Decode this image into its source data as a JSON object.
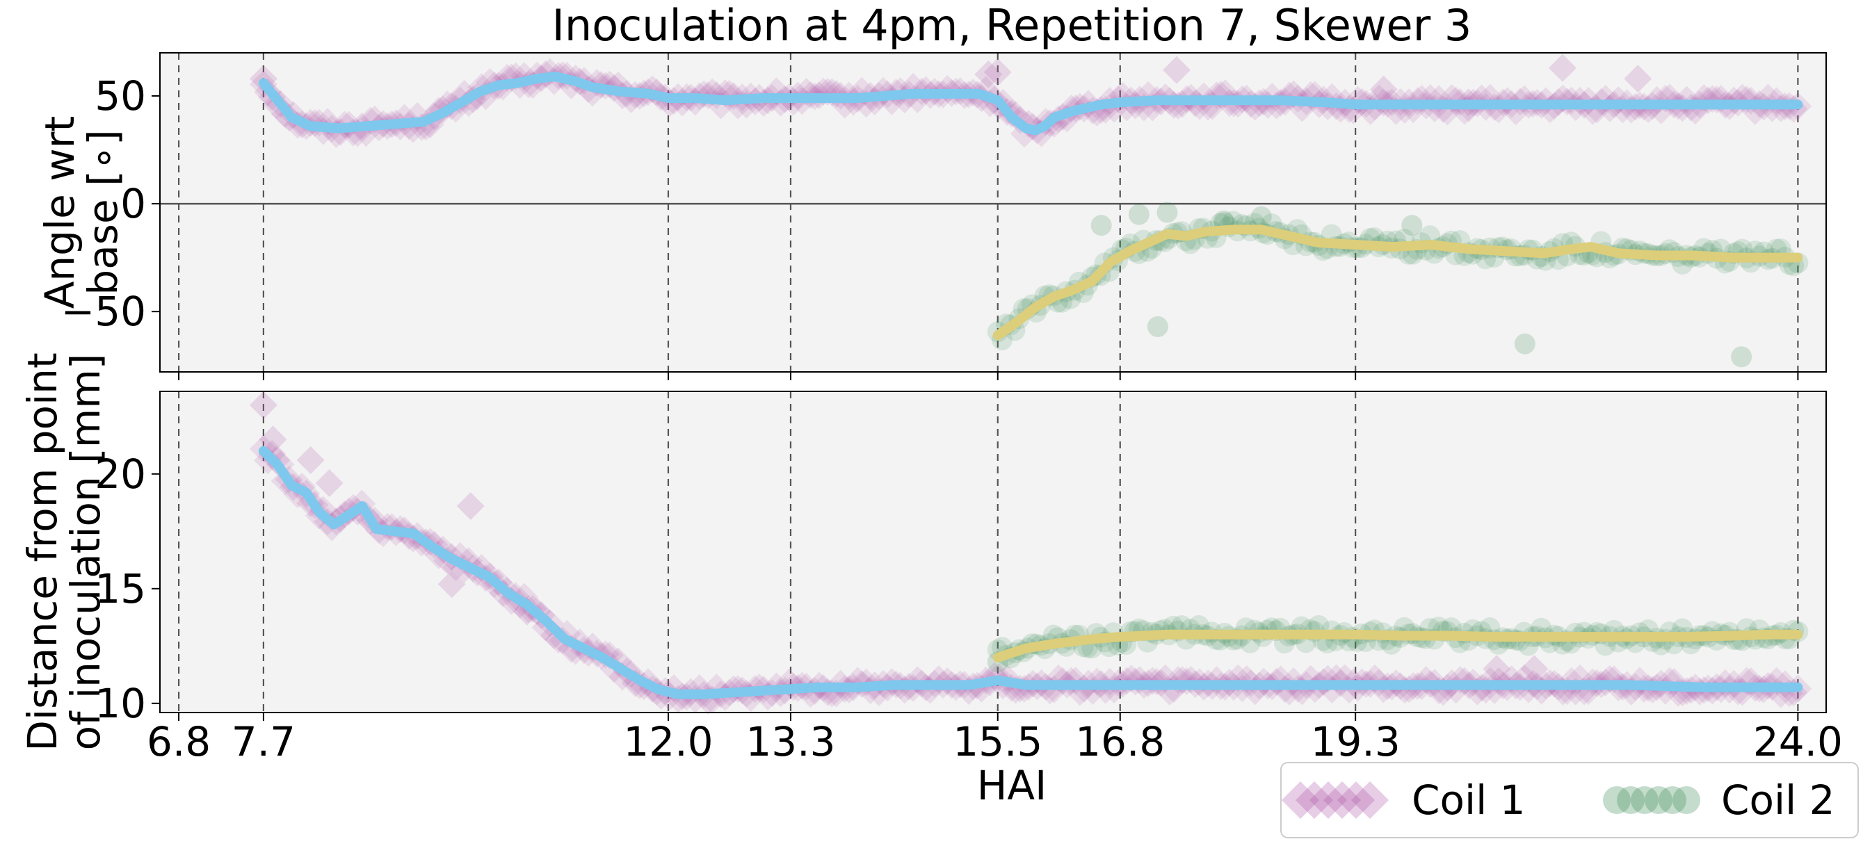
{
  "chart_data": {
    "type": "scatter",
    "title": "Inoculation at 4pm, Repetition 7, Skewer 3",
    "xlabel": "HAI",
    "xlim": [
      6.6,
      24.3
    ],
    "xticks": [
      6.8,
      7.7,
      12.0,
      13.3,
      15.5,
      16.8,
      19.3,
      24.0
    ],
    "xtick_labels": [
      "6.8",
      "7.7",
      "12.0",
      "13.3",
      "15.5",
      "16.8",
      "19.3",
      "24.0"
    ],
    "vlines": [
      6.8,
      7.7,
      12.0,
      13.3,
      15.5,
      16.8,
      19.3,
      24.0
    ],
    "legend": {
      "placement": "bottom-right",
      "entries": [
        {
          "label": "Coil 1",
          "marker": "diamond",
          "color": "#b05aaa"
        },
        {
          "label": "Coil 2",
          "marker": "circle",
          "color": "#3c8c55"
        }
      ]
    },
    "colors": {
      "panel_bg": "#f3f3f3",
      "coil1_marker": "#b05aaa",
      "coil1_line": "#7ec8ee",
      "coil2_marker": "#3c8c55",
      "coil2_line": "#dcce7a"
    },
    "panels": [
      {
        "ylabel_lines": [
          "Angle wrt",
          "base [∘]"
        ],
        "ylim": [
          -78,
          70
        ],
        "yticks": [
          50,
          0,
          -50
        ],
        "ytick_labels": [
          "50",
          "0",
          "−50"
        ],
        "hline": 0,
        "series": [
          {
            "name": "Coil 1",
            "smooth": [
              [
                7.7,
                56
              ],
              [
                7.85,
                48
              ],
              [
                8.0,
                40
              ],
              [
                8.2,
                36
              ],
              [
                8.5,
                35
              ],
              [
                8.8,
                36
              ],
              [
                9.1,
                37
              ],
              [
                9.4,
                38
              ],
              [
                9.6,
                42
              ],
              [
                9.8,
                47
              ],
              [
                10.0,
                52
              ],
              [
                10.2,
                55
              ],
              [
                10.4,
                56
              ],
              [
                10.6,
                58
              ],
              [
                10.8,
                59
              ],
              [
                11.0,
                57
              ],
              [
                11.2,
                54
              ],
              [
                11.5,
                52
              ],
              [
                11.8,
                51
              ],
              [
                12.0,
                49
              ],
              [
                12.3,
                49
              ],
              [
                12.6,
                48
              ],
              [
                13.0,
                49
              ],
              [
                13.3,
                49
              ],
              [
                13.6,
                49
              ],
              [
                14.0,
                49
              ],
              [
                14.3,
                50
              ],
              [
                14.6,
                51
              ],
              [
                15.0,
                51
              ],
              [
                15.3,
                51
              ],
              [
                15.5,
                48
              ],
              [
                15.65,
                40
              ],
              [
                15.8,
                35
              ],
              [
                15.9,
                34
              ],
              [
                16.0,
                36
              ],
              [
                16.1,
                40
              ],
              [
                16.3,
                43
              ],
              [
                16.6,
                46
              ],
              [
                16.8,
                47
              ],
              [
                17.2,
                48
              ],
              [
                17.6,
                48
              ],
              [
                18.0,
                48
              ],
              [
                18.5,
                48
              ],
              [
                19.0,
                47
              ],
              [
                19.3,
                46
              ],
              [
                19.8,
                46
              ],
              [
                20.3,
                46
              ],
              [
                20.8,
                46
              ],
              [
                21.3,
                46
              ],
              [
                21.8,
                46
              ],
              [
                22.3,
                46
              ],
              [
                22.8,
                46
              ],
              [
                23.3,
                46
              ],
              [
                23.8,
                46
              ],
              [
                24.0,
                46
              ]
            ],
            "outliers": [
              [
                7.7,
                58
              ],
              [
                15.4,
                60
              ],
              [
                15.5,
                61
              ],
              [
                17.4,
                62
              ],
              [
                21.5,
                63
              ],
              [
                22.3,
                58
              ],
              [
                19.6,
                53
              ],
              [
                20.5,
                47
              ]
            ]
          },
          {
            "name": "Coil 2",
            "smooth": [
              [
                15.5,
                -61
              ],
              [
                15.7,
                -55
              ],
              [
                15.9,
                -48
              ],
              [
                16.1,
                -43
              ],
              [
                16.3,
                -40
              ],
              [
                16.5,
                -36
              ],
              [
                16.7,
                -27
              ],
              [
                16.9,
                -22
              ],
              [
                17.1,
                -18
              ],
              [
                17.3,
                -14
              ],
              [
                17.5,
                -15
              ],
              [
                17.7,
                -13
              ],
              [
                18.0,
                -12
              ],
              [
                18.3,
                -12
              ],
              [
                18.6,
                -15
              ],
              [
                18.9,
                -18
              ],
              [
                19.3,
                -19
              ],
              [
                19.7,
                -20
              ],
              [
                20.1,
                -19
              ],
              [
                20.5,
                -21
              ],
              [
                20.9,
                -22
              ],
              [
                21.3,
                -23
              ],
              [
                21.6,
                -21
              ],
              [
                21.8,
                -20
              ],
              [
                22.1,
                -23
              ],
              [
                22.5,
                -24
              ],
              [
                22.9,
                -24
              ],
              [
                23.3,
                -25
              ],
              [
                23.7,
                -25
              ],
              [
                24.0,
                -25
              ]
            ],
            "outliers": [
              [
                17.2,
                -57
              ],
              [
                21.1,
                -65
              ],
              [
                23.4,
                -71
              ],
              [
                17.0,
                -5
              ],
              [
                17.3,
                -4
              ],
              [
                16.6,
                -10
              ],
              [
                17.9,
                -8
              ],
              [
                18.3,
                -6
              ],
              [
                19.9,
                -10
              ]
            ]
          }
        ]
      },
      {
        "ylabel_lines": [
          "Distance from point",
          "of inoculation [mm]"
        ],
        "ylim": [
          9.6,
          23.6
        ],
        "yticks": [
          20,
          15,
          10
        ],
        "ytick_labels": [
          "20",
          "15",
          "10"
        ],
        "series": [
          {
            "name": "Coil 1",
            "smooth": [
              [
                7.7,
                21.0
              ],
              [
                7.85,
                20.4
              ],
              [
                8.0,
                19.5
              ],
              [
                8.15,
                19.2
              ],
              [
                8.3,
                18.3
              ],
              [
                8.45,
                17.8
              ],
              [
                8.6,
                18.2
              ],
              [
                8.75,
                18.6
              ],
              [
                8.9,
                17.6
              ],
              [
                9.1,
                17.5
              ],
              [
                9.3,
                17.4
              ],
              [
                9.5,
                16.8
              ],
              [
                9.7,
                16.3
              ],
              [
                9.9,
                15.9
              ],
              [
                10.1,
                15.5
              ],
              [
                10.3,
                14.8
              ],
              [
                10.5,
                14.3
              ],
              [
                10.7,
                13.6
              ],
              [
                10.9,
                12.8
              ],
              [
                11.1,
                12.4
              ],
              [
                11.3,
                12.0
              ],
              [
                11.5,
                11.5
              ],
              [
                11.7,
                11.0
              ],
              [
                11.9,
                10.6
              ],
              [
                12.1,
                10.4
              ],
              [
                12.4,
                10.4
              ],
              [
                12.8,
                10.5
              ],
              [
                13.2,
                10.6
              ],
              [
                13.6,
                10.7
              ],
              [
                14.0,
                10.7
              ],
              [
                14.4,
                10.8
              ],
              [
                14.8,
                10.8
              ],
              [
                15.2,
                10.8
              ],
              [
                15.5,
                11.0
              ],
              [
                15.8,
                10.8
              ],
              [
                16.2,
                10.8
              ],
              [
                16.8,
                10.8
              ],
              [
                17.5,
                10.8
              ],
              [
                18.2,
                10.8
              ],
              [
                19.0,
                10.8
              ],
              [
                19.8,
                10.8
              ],
              [
                20.6,
                10.8
              ],
              [
                21.4,
                10.8
              ],
              [
                22.2,
                10.8
              ],
              [
                23.0,
                10.7
              ],
              [
                23.6,
                10.7
              ],
              [
                24.0,
                10.7
              ]
            ],
            "outliers": [
              [
                7.7,
                23.0
              ],
              [
                7.8,
                21.5
              ],
              [
                8.2,
                20.6
              ],
              [
                8.4,
                19.6
              ],
              [
                9.9,
                18.6
              ],
              [
                9.7,
                15.2
              ],
              [
                10.5,
                14.0
              ],
              [
                20.8,
                11.5
              ],
              [
                21.2,
                11.5
              ]
            ]
          },
          {
            "name": "Coil 2",
            "smooth": [
              [
                15.5,
                12.0
              ],
              [
                15.8,
                12.4
              ],
              [
                16.1,
                12.6
              ],
              [
                16.5,
                12.8
              ],
              [
                16.8,
                12.9
              ],
              [
                17.3,
                13.0
              ],
              [
                17.8,
                13.0
              ],
              [
                18.3,
                13.0
              ],
              [
                18.8,
                13.0
              ],
              [
                19.3,
                13.0
              ],
              [
                19.8,
                12.95
              ],
              [
                20.3,
                12.95
              ],
              [
                20.8,
                12.9
              ],
              [
                21.3,
                12.9
              ],
              [
                21.8,
                12.9
              ],
              [
                22.3,
                12.9
              ],
              [
                22.8,
                12.9
              ],
              [
                23.3,
                12.95
              ],
              [
                23.7,
                13.0
              ],
              [
                24.0,
                13.0
              ]
            ],
            "outliers": [
              [
                15.5,
                11.8
              ]
            ]
          }
        ]
      }
    ]
  }
}
